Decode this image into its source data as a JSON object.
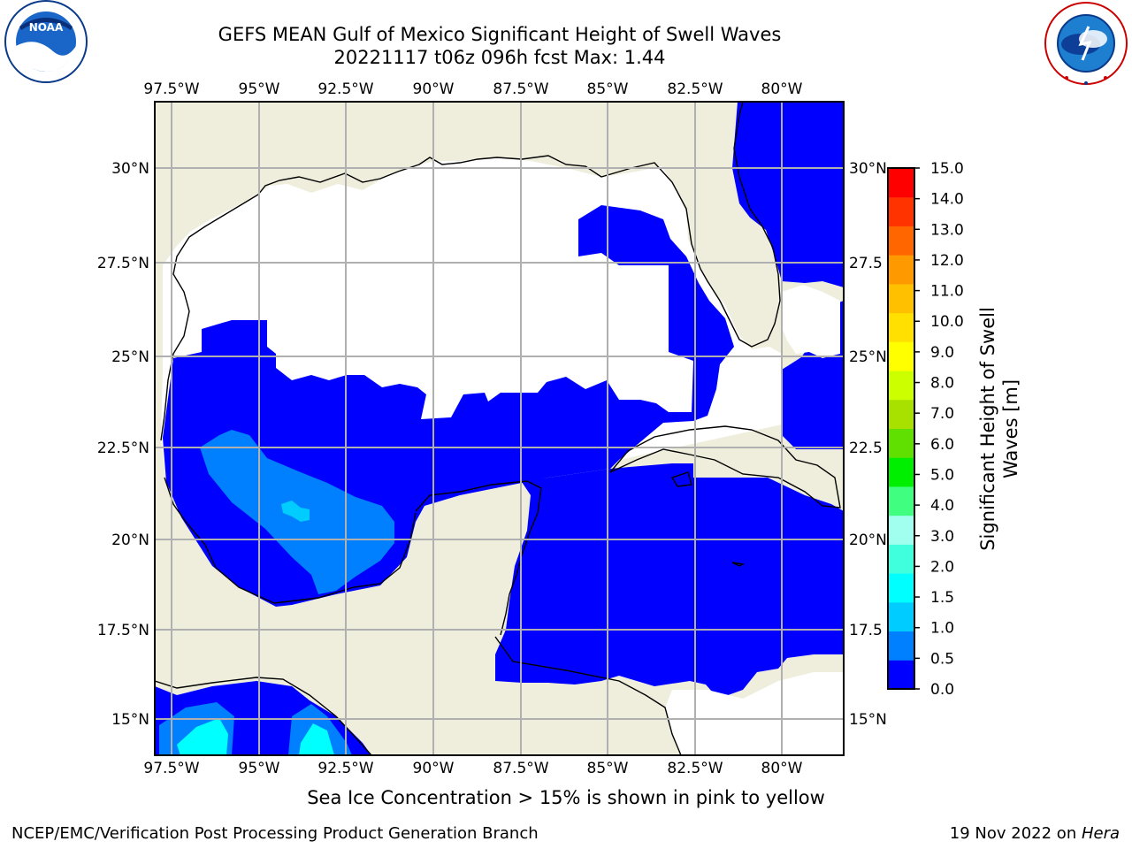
{
  "header": {
    "title_line1": "GEFS MEAN Gulf of Mexico Significant Height of Swell Waves",
    "title_line2": "20221117 t06z 096h fcst   Max: 1.44"
  },
  "logos": {
    "left": {
      "name": "noaa-logo",
      "text": "NOAA"
    },
    "right": {
      "name": "nws-logo",
      "text": "NATIONAL WEATHER SERVICE"
    }
  },
  "map": {
    "lon_labels": [
      "97.5°W",
      "95°W",
      "92.5°W",
      "90°W",
      "87.5°W",
      "85°W",
      "82.5°W",
      "80°W"
    ],
    "lat_labels_left": [
      "30°N",
      "27.5°N",
      "25°N",
      "22.5°N",
      "20°N",
      "17.5°N",
      "15°N"
    ],
    "lat_labels_right": [
      "30°N",
      "27.5",
      "25°N",
      "22.5",
      "20°N",
      "17.5",
      "15°N"
    ],
    "colors": {
      "land": "#efeedd",
      "water_none": "#ffffff",
      "grid": "#b0b0b0"
    }
  },
  "colorbar": {
    "label": "Significant Height of Swell Waves [m]",
    "label_line1": "Significant Height of Swell",
    "label_line2": "Waves [m]",
    "ticks": [
      "0.0",
      "0.5",
      "1.0",
      "1.5",
      "2.0",
      "3.0",
      "4.0",
      "5.0",
      "6.0",
      "7.0",
      "8.0",
      "9.0",
      "10.0",
      "11.0",
      "12.0",
      "13.0",
      "14.0",
      "15.0"
    ],
    "colors": [
      "#0000ff",
      "#0080ff",
      "#00ccff",
      "#00ffff",
      "#40ffdd",
      "#a0ffee",
      "#40ff80",
      "#00ee00",
      "#60e000",
      "#a8e000",
      "#ccff00",
      "#ffff00",
      "#ffe000",
      "#ffc000",
      "#ff9900",
      "#ff6600",
      "#ff3300",
      "#ff0000"
    ]
  },
  "footer": {
    "ice_note": "Sea Ice Concentration > 15% is shown in pink to yellow",
    "left": "NCEP/EMC/Verification Post Processing Product Generation Branch",
    "right_prefix": "19 Nov 2022 on ",
    "right_host": "Hera"
  }
}
